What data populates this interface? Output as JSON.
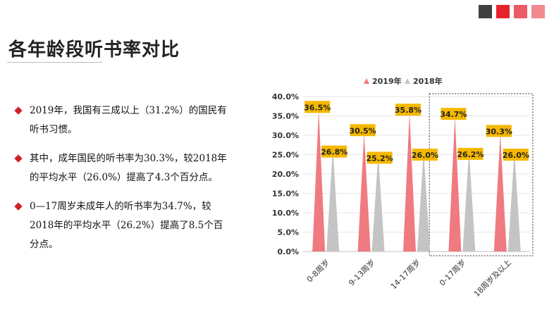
{
  "header": {
    "title": "各年龄段听书率对比",
    "swatches": [
      "#404040",
      "#e8222d",
      "#ec5a63",
      "#f18a8f"
    ]
  },
  "bullets": [
    {
      "lines": [
        "2019年，我国有三成以上（31.2%）的国民有",
        "听书习惯。"
      ]
    },
    {
      "lines": [
        "其中，成年国民的听书率为30.3%，较2018年",
        "的平均水平（26.0%）提高了4.3个百分点。"
      ]
    },
    {
      "lines": [
        "0—17周岁未成年人的听书率为34.7%，较",
        "2018年的平均水平（26.2%）提高了8.5个百",
        "分点。"
      ]
    }
  ],
  "chart_data": {
    "type": "bar",
    "categories": [
      "0-8周岁",
      "9-13周岁",
      "14-17周岁",
      "0-17周岁",
      "18周岁及以上"
    ],
    "series": [
      {
        "name": "2019年",
        "values": [
          36.5,
          30.5,
          35.8,
          34.7,
          30.3
        ],
        "labels": [
          "36.5%",
          "30.5%",
          "35.8%",
          "34.7%",
          "30.3%"
        ],
        "color": "#ef7a80"
      },
      {
        "name": "2018年",
        "values": [
          26.8,
          25.2,
          26.0,
          26.2,
          26.0
        ],
        "labels": [
          "26.8%",
          "25.2%",
          "26.0%",
          "26.2%",
          "26.0%"
        ],
        "color": "#c4c4c4"
      }
    ],
    "ylim": [
      0,
      40
    ],
    "yticks": [
      "0.0%",
      "5.0%",
      "10.0%",
      "15.0%",
      "20.0%",
      "25.0%",
      "30.0%",
      "35.0%",
      "40.0%"
    ],
    "legend_position": "top",
    "grid": true,
    "label_background": "#f5b800",
    "highlight_categories": [
      "0-17周岁",
      "18周岁及以上"
    ]
  }
}
